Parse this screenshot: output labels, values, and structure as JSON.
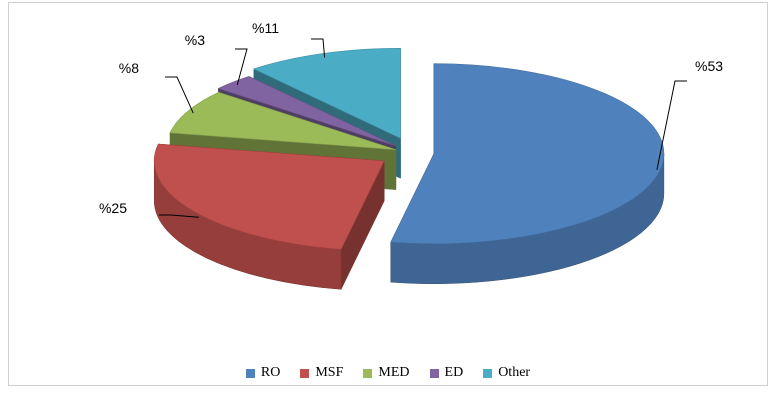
{
  "chart_data": {
    "type": "pie",
    "style": "3d-exploded",
    "categories": [
      "RO",
      "MSF",
      "MED",
      "ED",
      "Other"
    ],
    "values": [
      53,
      25,
      8,
      3,
      11
    ],
    "labels": [
      "%53",
      "%25",
      "%8",
      "%3",
      "%11"
    ],
    "colors": [
      "#4F81BD",
      "#C0504D",
      "#9BBB59",
      "#8064A2",
      "#4BACC6"
    ],
    "legend_position": "bottom",
    "title": ""
  }
}
